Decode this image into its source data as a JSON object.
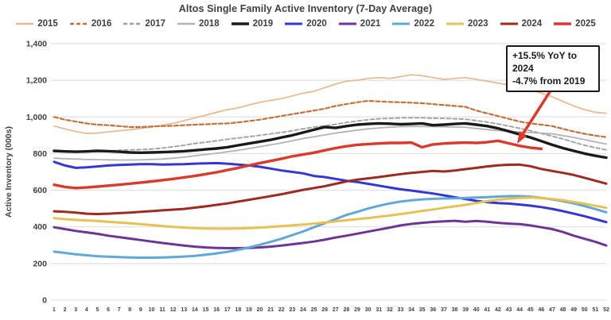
{
  "chart_data": {
    "type": "line",
    "title": "Altos Single Family Active Inventory (7-Day Average)",
    "xlabel": "",
    "ylabel": "Active Inventory (000s)",
    "ylim": [
      0,
      1400
    ],
    "ytick_step": 200,
    "grid": true,
    "legend_position": "top",
    "x": [
      1,
      2,
      3,
      4,
      5,
      6,
      7,
      8,
      9,
      10,
      11,
      12,
      13,
      14,
      15,
      16,
      17,
      18,
      19,
      20,
      21,
      22,
      23,
      24,
      25,
      26,
      27,
      28,
      29,
      30,
      31,
      32,
      33,
      34,
      35,
      36,
      37,
      38,
      39,
      40,
      41,
      42,
      43,
      44,
      45,
      46,
      47,
      48,
      49,
      50,
      51,
      52
    ],
    "series": [
      {
        "name": "2015",
        "color": "#E7B98E",
        "dash": "none",
        "width": 1.7,
        "values": [
          950,
          935,
          920,
          910,
          912,
          918,
          925,
          930,
          938,
          945,
          955,
          965,
          980,
          995,
          1010,
          1025,
          1040,
          1050,
          1065,
          1080,
          1090,
          1100,
          1115,
          1130,
          1140,
          1160,
          1180,
          1195,
          1200,
          1210,
          1215,
          1210,
          1220,
          1230,
          1225,
          1215,
          1205,
          1210,
          1215,
          1205,
          1195,
          1185,
          1175,
          1160,
          1150,
          1130,
          1110,
          1085,
          1060,
          1040,
          1025,
          1020
        ]
      },
      {
        "name": "2016",
        "color": "#C4703C",
        "dash": "5,3",
        "width": 2.2,
        "values": [
          1000,
          985,
          975,
          965,
          958,
          955,
          950,
          945,
          945,
          948,
          950,
          952,
          955,
          958,
          960,
          963,
          965,
          970,
          978,
          985,
          995,
          1005,
          1015,
          1025,
          1035,
          1045,
          1060,
          1070,
          1080,
          1088,
          1085,
          1082,
          1080,
          1078,
          1075,
          1070,
          1065,
          1060,
          1055,
          1035,
          1020,
          1005,
          990,
          975,
          965,
          958,
          950,
          935,
          920,
          908,
          898,
          890
        ]
      },
      {
        "name": "2017",
        "color": "#9E9E9E",
        "dash": "5,3",
        "width": 1.8,
        "values": [
          815,
          813,
          812,
          812,
          813,
          815,
          818,
          820,
          822,
          825,
          830,
          838,
          845,
          855,
          862,
          870,
          878,
          885,
          892,
          900,
          908,
          915,
          925,
          935,
          945,
          952,
          960,
          970,
          978,
          985,
          990,
          992,
          995,
          995,
          995,
          993,
          992,
          990,
          988,
          980,
          972,
          962,
          950,
          938,
          925,
          910,
          895,
          880,
          862,
          845,
          832,
          820
        ]
      },
      {
        "name": "2018",
        "color": "#B3B3B3",
        "dash": "none",
        "width": 1.8,
        "values": [
          775,
          772,
          770,
          768,
          767,
          766,
          765,
          765,
          766,
          768,
          770,
          775,
          780,
          788,
          795,
          802,
          810,
          818,
          828,
          838,
          848,
          858,
          870,
          882,
          892,
          902,
          912,
          920,
          928,
          935,
          940,
          944,
          947,
          948,
          948,
          947,
          946,
          945,
          943,
          937,
          931,
          926,
          922,
          918,
          915,
          912,
          908,
          898,
          888,
          876,
          864,
          852
        ]
      },
      {
        "name": "2019",
        "color": "#1A1A1A",
        "dash": "none",
        "width": 3.4,
        "values": [
          815,
          812,
          810,
          812,
          815,
          813,
          810,
          806,
          805,
          806,
          808,
          810,
          813,
          818,
          823,
          828,
          835,
          845,
          855,
          865,
          875,
          888,
          900,
          915,
          930,
          945,
          940,
          950,
          958,
          962,
          965,
          963,
          960,
          962,
          965,
          955,
          958,
          962,
          965,
          958,
          950,
          938,
          922,
          905,
          888,
          868,
          848,
          830,
          815,
          800,
          788,
          778
        ]
      },
      {
        "name": "2020",
        "color": "#3636D2",
        "dash": "none",
        "width": 3.0,
        "values": [
          755,
          735,
          722,
          725,
          730,
          735,
          738,
          740,
          742,
          742,
          740,
          741,
          742,
          745,
          747,
          748,
          745,
          740,
          735,
          728,
          718,
          708,
          700,
          692,
          678,
          672,
          662,
          652,
          645,
          635,
          625,
          615,
          605,
          598,
          590,
          582,
          572,
          562,
          552,
          542,
          535,
          530,
          527,
          522,
          516,
          508,
          498,
          486,
          472,
          458,
          442,
          426
        ]
      },
      {
        "name": "2021",
        "color": "#6E3596",
        "dash": "none",
        "width": 3.0,
        "values": [
          398,
          388,
          378,
          370,
          362,
          352,
          344,
          336,
          328,
          320,
          312,
          305,
          298,
          292,
          288,
          285,
          284,
          284,
          285,
          288,
          292,
          298,
          305,
          312,
          320,
          330,
          342,
          352,
          363,
          374,
          385,
          396,
          408,
          416,
          422,
          427,
          430,
          433,
          428,
          432,
          428,
          422,
          418,
          415,
          408,
          398,
          388,
          372,
          352,
          335,
          318,
          298
        ]
      },
      {
        "name": "2022",
        "color": "#5FA8D8",
        "dash": "none",
        "width": 3.0,
        "values": [
          265,
          258,
          250,
          245,
          240,
          237,
          235,
          233,
          232,
          232,
          233,
          235,
          238,
          242,
          248,
          255,
          264,
          275,
          288,
          302,
          318,
          335,
          355,
          375,
          398,
          420,
          442,
          465,
          482,
          500,
          515,
          528,
          538,
          545,
          550,
          553,
          555,
          556,
          558,
          560,
          562,
          565,
          568,
          568,
          565,
          558,
          550,
          540,
          528,
          513,
          497,
          480
        ]
      },
      {
        "name": "2023",
        "color": "#E6C153",
        "dash": "none",
        "width": 3.0,
        "values": [
          448,
          442,
          438,
          435,
          432,
          428,
          424,
          420,
          415,
          410,
          405,
          400,
          396,
          393,
          391,
          390,
          390,
          391,
          393,
          396,
          400,
          404,
          408,
          413,
          418,
          424,
          430,
          436,
          442,
          448,
          455,
          462,
          470,
          478,
          487,
          495,
          504,
          512,
          520,
          530,
          540,
          548,
          554,
          558,
          560,
          557,
          552,
          545,
          536,
          526,
          515,
          504
        ]
      },
      {
        "name": "2024",
        "color": "#9C2B22",
        "dash": "none",
        "width": 3.0,
        "values": [
          485,
          482,
          478,
          472,
          470,
          472,
          475,
          478,
          482,
          486,
          490,
          494,
          498,
          505,
          512,
          520,
          528,
          538,
          548,
          558,
          568,
          578,
          590,
          602,
          612,
          622,
          635,
          648,
          658,
          665,
          672,
          680,
          688,
          695,
          700,
          705,
          702,
          708,
          715,
          722,
          730,
          736,
          739,
          740,
          731,
          716,
          705,
          695,
          683,
          668,
          652,
          636
        ]
      },
      {
        "name": "2025",
        "color": "#D93A2B",
        "dash": "none",
        "width": 3.4,
        "values": [
          630,
          618,
          612,
          615,
          620,
          625,
          630,
          636,
          642,
          648,
          655,
          662,
          670,
          678,
          688,
          698,
          710,
          722,
          735,
          748,
          760,
          772,
          785,
          795,
          805,
          818,
          830,
          840,
          848,
          852,
          855,
          858,
          858,
          860,
          835,
          850,
          855,
          858,
          860,
          858,
          862,
          870,
          856,
          842,
          832,
          826
        ]
      }
    ],
    "annotation": {
      "line1": "+15.5% YoY to 2024",
      "line2": "-4.7% from 2019",
      "arrow_color": "#D93A2B"
    },
    "colors": {
      "grid": "#DCDCDC",
      "text": "#404040",
      "background": "#FFFFFF"
    }
  }
}
